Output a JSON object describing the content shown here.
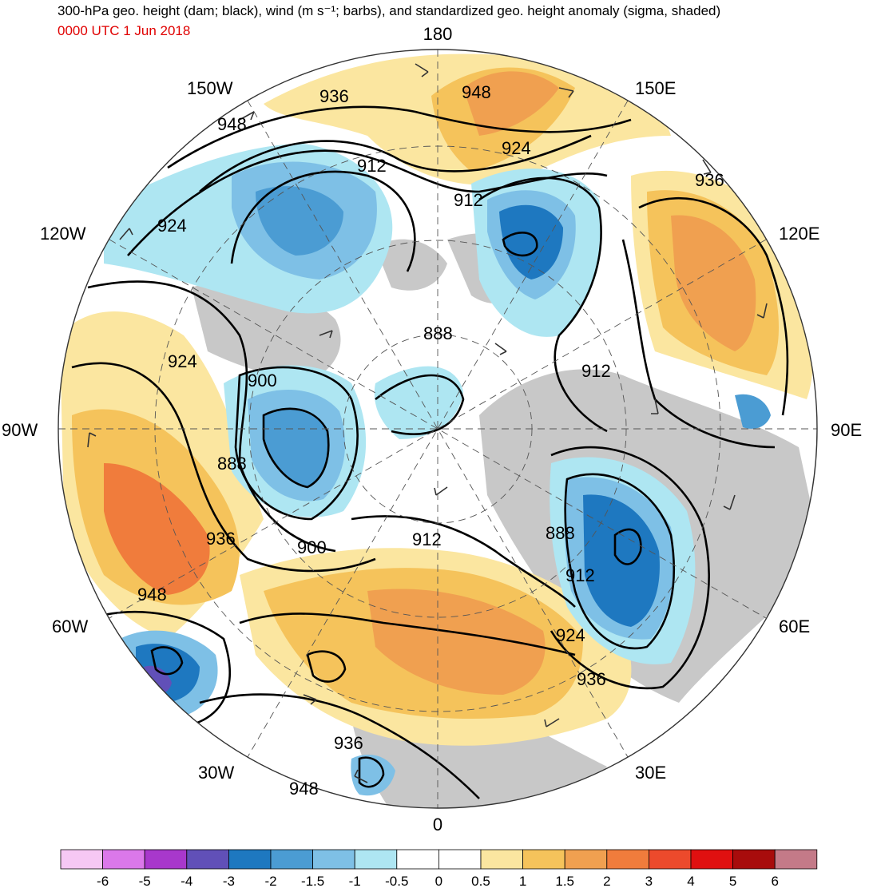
{
  "header": {
    "title": "300-hPa geo. height (dam; black), wind (m s⁻¹; barbs), and standardized geo. height anomaly (sigma, shaded)",
    "valid_time": "0000 UTC 1 Jun 2018"
  },
  "map": {
    "projection": "north-polar-stereographic",
    "longitude_labels": [
      "180",
      "150E",
      "120E",
      "90E",
      "60E",
      "30E",
      "0",
      "30W",
      "60W",
      "90W",
      "120W",
      "150W"
    ],
    "contour_labels": [
      "936",
      "948",
      "948",
      "912",
      "924",
      "912",
      "936",
      "924",
      "924",
      "900",
      "888",
      "912",
      "888",
      "888",
      "912",
      "936",
      "924",
      "936",
      "900",
      "912",
      "948",
      "936",
      "948"
    ],
    "colors": {
      "ocean_land_bg": "#ffffff",
      "land": "#c8c8c8",
      "contour": "#000000",
      "grid": "#555555"
    }
  },
  "colorbar": {
    "ticks": [
      "-6",
      "-5",
      "-4",
      "-3",
      "-2",
      "-1.5",
      "-1",
      "-0.5",
      "0",
      "0.5",
      "1",
      "1.5",
      "2",
      "3",
      "4",
      "5",
      "6"
    ],
    "colors": [
      "#f6c8f4",
      "#db78ea",
      "#a838cc",
      "#6150b8",
      "#1e78c0",
      "#4b9cd3",
      "#7ec0e6",
      "#aee6f2",
      "#ffffff",
      "#ffffff",
      "#fbe6a0",
      "#f5c35b",
      "#f0a050",
      "#f07c3c",
      "#ec4a2c",
      "#e01010",
      "#a80c0c",
      "#c47a88"
    ]
  }
}
